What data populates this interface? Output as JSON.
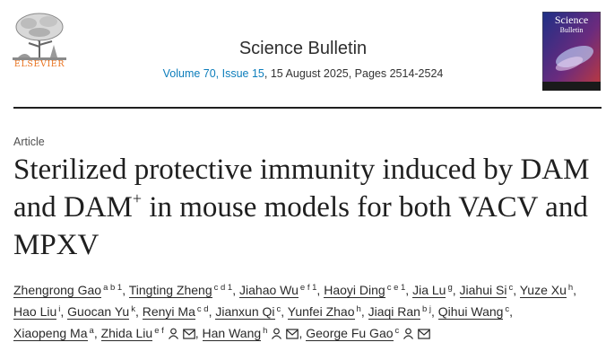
{
  "header": {
    "publisher_logo": "ELSEVIER",
    "journal_name": "Science Bulletin",
    "volume_issue": "Volume 70, Issue 15",
    "date_pages": ", 15 August 2025, Pages 2514-2524",
    "cover_thumbnail": {
      "title_line1": "Science",
      "title_line2": "Bulletin"
    }
  },
  "article": {
    "type": "Article",
    "title_part1": "Sterilized protective immunity induced by DAM and DAM",
    "title_sup": "+",
    "title_part2": " in mouse models for both VACV and MPXV"
  },
  "authors": [
    {
      "name": "Zhengrong Gao",
      "aff": "a b 1"
    },
    {
      "name": "Tingting Zheng",
      "aff": "c d 1"
    },
    {
      "name": "Jiahao Wu",
      "aff": "e f 1"
    },
    {
      "name": "Haoyi Ding",
      "aff": "c e 1"
    },
    {
      "name": "Jia Lu",
      "aff": "g"
    },
    {
      "name": "Jiahui Si",
      "aff": "c"
    },
    {
      "name": "Yuze Xu",
      "aff": "h"
    },
    {
      "name": "Hao Liu",
      "aff": "i"
    },
    {
      "name": "Guocan Yu",
      "aff": "k"
    },
    {
      "name": "Renyi Ma",
      "aff": "c d"
    },
    {
      "name": "Jianxun Qi",
      "aff": "c"
    },
    {
      "name": "Yunfei Zhao",
      "aff": "h"
    },
    {
      "name": "Jiaqi Ran",
      "aff": "b j"
    },
    {
      "name": "Qihui Wang",
      "aff": "c"
    },
    {
      "name": "Xiaopeng Ma",
      "aff": "a"
    },
    {
      "name": "Zhida Liu",
      "aff": "e f"
    },
    {
      "name": "Han Wang",
      "aff": "h"
    },
    {
      "name": "George Fu Gao",
      "aff": "c"
    }
  ]
}
